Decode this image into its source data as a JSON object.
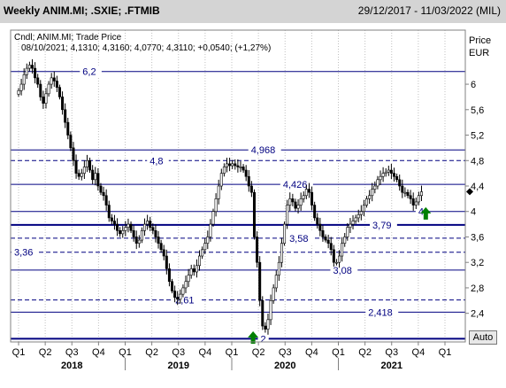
{
  "header": {
    "title": "Weekly ANIM.MI; .SXIE; .FTMIB",
    "date_range": "29/12/2017 - 11/03/2022 (MIL)"
  },
  "legend": {
    "line1": "Cndl; ANIM.MI; Trade Price",
    "line2": "08/10/2021; 4,1310; 4,3160; 4,0770; 4,3110; +0,0540; (+1,27%)"
  },
  "axis": {
    "price_label": "Price",
    "currency_label": "EUR",
    "auto_label": "Auto"
  },
  "colors": {
    "up": "#ffffff",
    "down": "#000000",
    "level_line": "#000080",
    "level_text": "#000080",
    "arrow": "#008000"
  },
  "chart_data": {
    "type": "candlestick",
    "y_range": [
      1.95,
      6.85
    ],
    "y_ticks": [
      {
        "value": 6,
        "label": "6"
      },
      {
        "value": 5.6,
        "label": "5,6"
      },
      {
        "value": 5.2,
        "label": "5,2"
      },
      {
        "value": 4.8,
        "label": "4,8"
      },
      {
        "value": 4.4,
        "label": "4,4"
      },
      {
        "value": 4,
        "label": "4"
      },
      {
        "value": 3.6,
        "label": "3,6"
      },
      {
        "value": 3.2,
        "label": "3,2"
      },
      {
        "value": 2.8,
        "label": "2,8"
      },
      {
        "value": 2.4,
        "label": "2,4"
      }
    ],
    "x_ticks": [
      {
        "t": 0.0,
        "label": "Q1"
      },
      {
        "t": 0.25,
        "label": "Q2"
      },
      {
        "t": 0.5,
        "label": "Q3"
      },
      {
        "t": 0.75,
        "label": "Q4"
      },
      {
        "t": 1.0,
        "label": "Q1"
      },
      {
        "t": 1.25,
        "label": "Q2"
      },
      {
        "t": 1.5,
        "label": "Q3"
      },
      {
        "t": 1.75,
        "label": "Q4"
      },
      {
        "t": 2.0,
        "label": "Q1"
      },
      {
        "t": 2.25,
        "label": "Q2"
      },
      {
        "t": 2.5,
        "label": "Q3"
      },
      {
        "t": 2.75,
        "label": "Q4"
      },
      {
        "t": 3.0,
        "label": "Q1"
      },
      {
        "t": 3.25,
        "label": "Q2"
      },
      {
        "t": 3.5,
        "label": "Q3"
      },
      {
        "t": 3.75,
        "label": "Q4"
      },
      {
        "t": 4.0,
        "label": "Q1"
      }
    ],
    "x_years": [
      {
        "t": 0.5,
        "label": "2018"
      },
      {
        "t": 1.5,
        "label": "2019"
      },
      {
        "t": 2.5,
        "label": "2020"
      },
      {
        "t": 3.5,
        "label": "2021"
      }
    ],
    "levels": [
      {
        "value": 6.2,
        "label": "6,2",
        "style": "solid",
        "weight": 1,
        "label_t": 0.6
      },
      {
        "value": 4.968,
        "label": "4,968",
        "style": "solid",
        "weight": 1,
        "label_t": 2.18
      },
      {
        "value": 4.8,
        "label": "4,8",
        "style": "dashed",
        "weight": 1,
        "label_t": 1.23
      },
      {
        "value": 4.426,
        "label": "4,426",
        "style": "solid",
        "weight": 1,
        "label_t": 2.48
      },
      {
        "value": 4.0,
        "label": "4",
        "style": "solid",
        "weight": 1,
        "label_t": 3.75
      },
      {
        "value": 3.79,
        "label": "3,79",
        "style": "solid",
        "weight": 2,
        "label_t": 3.32
      },
      {
        "value": 3.58,
        "label": "3,58",
        "style": "dashed",
        "weight": 1,
        "label_t": 2.54
      },
      {
        "value": 3.36,
        "label": "3,36",
        "style": "dashed",
        "weight": 1,
        "label_t": -0.08
      },
      {
        "value": 3.08,
        "label": "3,08",
        "style": "solid",
        "weight": 1,
        "label_t": 2.95
      },
      {
        "value": 2.61,
        "label": "2,61",
        "style": "dashed",
        "weight": 1,
        "label_t": 1.47
      },
      {
        "value": 2.418,
        "label": "2,418",
        "style": "solid",
        "weight": 1,
        "label_t": 3.28
      },
      {
        "value": 2.0,
        "label": "2",
        "style": "solid",
        "weight": 2,
        "label_t": 2.27
      }
    ],
    "arrows": [
      {
        "t": 2.2,
        "value": 1.95
      },
      {
        "t": 3.82,
        "value": 3.9
      }
    ],
    "last_price": 4.311,
    "weekly_closes": [
      5.9,
      6.0,
      6.15,
      6.25,
      6.3,
      6.25,
      6.1,
      6.0,
      5.8,
      5.7,
      5.85,
      6.0,
      6.1,
      6.05,
      5.95,
      5.8,
      5.6,
      5.4,
      5.2,
      5.0,
      4.8,
      4.6,
      4.55,
      4.6,
      4.7,
      4.8,
      4.65,
      4.5,
      4.6,
      4.4,
      4.3,
      4.25,
      4.1,
      3.9,
      3.85,
      3.8,
      3.7,
      3.65,
      3.7,
      3.75,
      3.8,
      3.7,
      3.6,
      3.5,
      3.55,
      3.7,
      3.8,
      3.85,
      3.75,
      3.7,
      3.6,
      3.5,
      3.4,
      3.3,
      3.1,
      2.9,
      2.75,
      2.65,
      2.62,
      2.7,
      2.8,
      2.9,
      3.0,
      3.1,
      3.05,
      3.15,
      3.3,
      3.4,
      3.5,
      3.6,
      3.8,
      4.0,
      4.2,
      4.4,
      4.6,
      4.7,
      4.75,
      4.72,
      4.75,
      4.72,
      4.7,
      4.7,
      4.65,
      4.55,
      4.4,
      4.3,
      3.6,
      3.2,
      2.6,
      2.2,
      2.15,
      2.3,
      2.6,
      2.8,
      3.0,
      3.2,
      3.5,
      3.8,
      4.1,
      4.2,
      4.15,
      4.05,
      4.1,
      4.2,
      4.25,
      4.35,
      4.3,
      4.1,
      3.9,
      3.8,
      3.7,
      3.6,
      3.55,
      3.5,
      3.4,
      3.2,
      3.2,
      3.3,
      3.5,
      3.6,
      3.75,
      3.8,
      3.85,
      3.9,
      3.95,
      4.0,
      4.1,
      4.2,
      4.25,
      4.35,
      4.4,
      4.5,
      4.55,
      4.6,
      4.62,
      4.65,
      4.6,
      4.55,
      4.5,
      4.4,
      4.3,
      4.3,
      4.25,
      4.2,
      4.1,
      4.15,
      4.25,
      4.31
    ]
  }
}
